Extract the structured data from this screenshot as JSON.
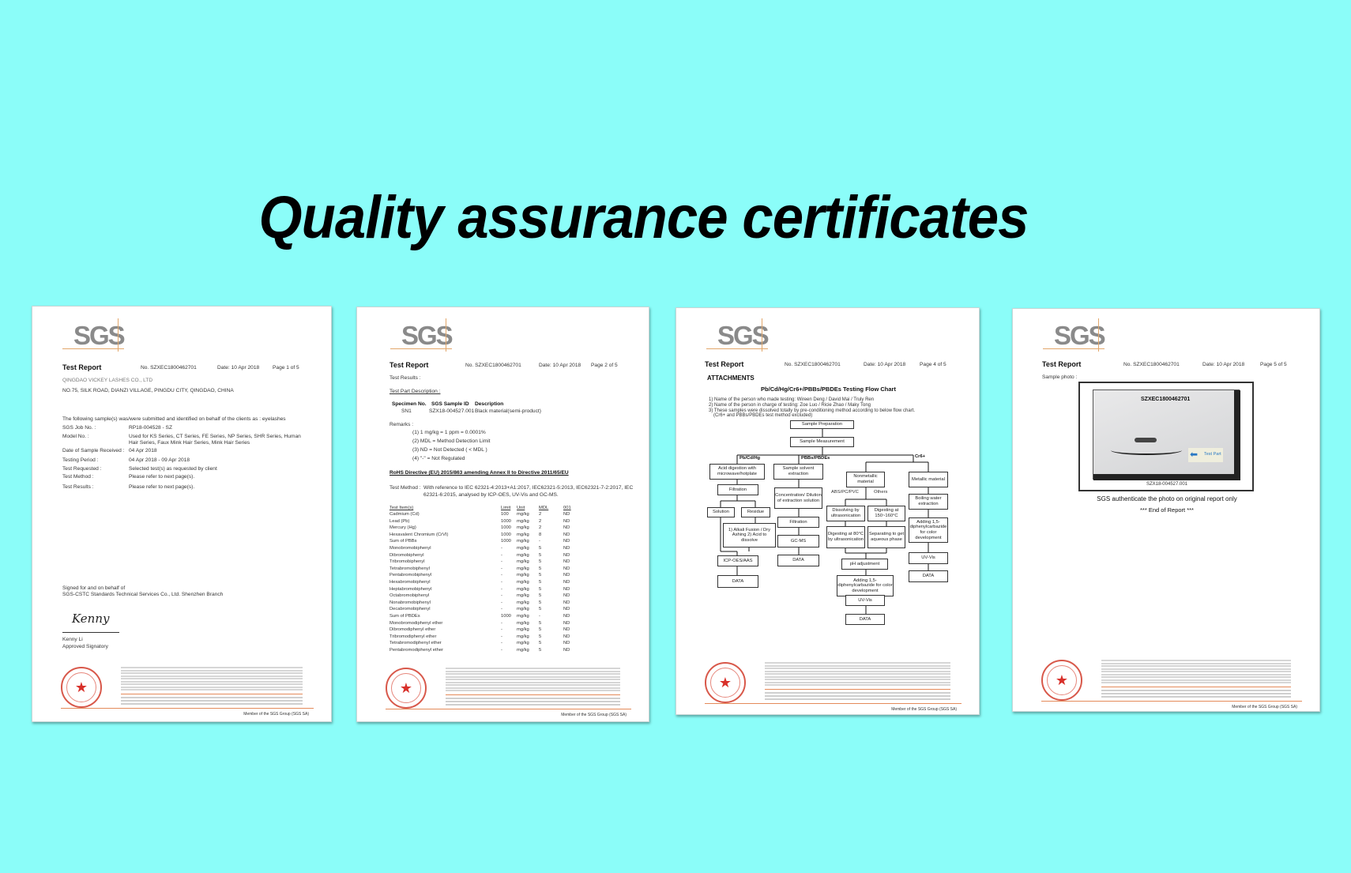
{
  "title": "Quality assurance certificates",
  "colors": {
    "background": "#8bfdf9",
    "logo_gray": "#8a8a8a",
    "seal_red": "#d8302a"
  },
  "common": {
    "logo": "SGS",
    "report_title": "Test Report",
    "report_no": "No. SZXEC1800462701",
    "date": "Date: 10 Apr 2018",
    "member": "Member of the SGS Group (SGS SA)"
  },
  "page1": {
    "page": "Page 1 of 5",
    "company": "QINGDAO VICKEY LASHES CO., LTD",
    "address": "NO.75, SILK ROAD, DIANZI VILLAGE, PINGDU CITY, QINGDAO, CHINA",
    "intro": "The following sample(s) was/were submitted and identified on behalf of the clients as : eyelashes",
    "fields": [
      {
        "label": "SGS Job No. :",
        "value": "RP18-004528 - SZ"
      },
      {
        "label": "Model No. :",
        "value": "Used for KS Series, CT Series, FE Series, NP Series, SHR Series, Human",
        "value2": "Hair Series, Faux Mink Hair Series, Mink Hair Series"
      },
      {
        "label": "Date of Sample Received :",
        "value": "04 Apr 2018"
      },
      {
        "label": "Testing Period :",
        "value": "04 Apr 2018 - 09 Apr 2018"
      },
      {
        "label": "Test Requested :",
        "value": "Selected test(s) as requested by client"
      },
      {
        "label": "Test Method :",
        "value": "Please refer to next page(s)."
      },
      {
        "label": "Test Results :",
        "value": "Please refer to next page(s)."
      }
    ],
    "signed": "Signed for and on behalf of",
    "signed_company": "SGS-CSTC Standards Technical Services Co., Ltd. Shenzhen Branch",
    "signature": "Kenny",
    "signer": "Kenny Li",
    "signer_role": "Approved Signatory"
  },
  "page2": {
    "page": "Page 2 of 5",
    "results": "Test Results :",
    "part_desc": "Test Part Description :",
    "spec_headers": [
      "Specimen No.",
      "SGS Sample ID",
      "Description"
    ],
    "spec_row": [
      "SN1",
      "SZX18-004527.001",
      "Black material(semi-product)"
    ],
    "remarks_label": "Remarks :",
    "remarks": [
      "(1) 1 mg/kg = 1 ppm = 0.0001%",
      "(2) MDL = Method Detection Limit",
      "(3) ND = Not Detected ( < MDL )",
      "(4) \"-\" = Not Regulated"
    ],
    "directive": "RoHS Directive (EU) 2015/863 amending Annex II to Directive 2011/65/EU",
    "method_label": "Test Method :",
    "method": "With reference to IEC 62321-4:2013+A1:2017, IEC62321-5:2013, IEC62321-7-2:2017, IEC",
    "method2": "62321-6:2015, analysed by ICP-OES, UV-Vis and GC-MS.",
    "table_headers": [
      "Test Item(s)",
      "Limit",
      "Unit",
      "MDL",
      "001"
    ],
    "rows": [
      [
        "Cadmium (Cd)",
        "100",
        "mg/kg",
        "2",
        "ND"
      ],
      [
        "Lead (Pb)",
        "1000",
        "mg/kg",
        "2",
        "ND"
      ],
      [
        "Mercury (Hg)",
        "1000",
        "mg/kg",
        "2",
        "ND"
      ],
      [
        "Hexavalent Chromium (CrVI)",
        "1000",
        "mg/kg",
        "8",
        "ND"
      ],
      [
        "Sum of PBBs",
        "1000",
        "mg/kg",
        "-",
        "ND"
      ],
      [
        "Monobromobiphenyl",
        "-",
        "mg/kg",
        "5",
        "ND"
      ],
      [
        "Dibromobiphenyl",
        "-",
        "mg/kg",
        "5",
        "ND"
      ],
      [
        "Tribromobiphenyl",
        "-",
        "mg/kg",
        "5",
        "ND"
      ],
      [
        "Tetrabromobiphenyl",
        "-",
        "mg/kg",
        "5",
        "ND"
      ],
      [
        "Pentabromobiphenyl",
        "-",
        "mg/kg",
        "5",
        "ND"
      ],
      [
        "Hexabromobiphenyl",
        "-",
        "mg/kg",
        "5",
        "ND"
      ],
      [
        "Heptabromobiphenyl",
        "-",
        "mg/kg",
        "5",
        "ND"
      ],
      [
        "Octabromobiphenyl",
        "-",
        "mg/kg",
        "5",
        "ND"
      ],
      [
        "Nonabromobiphenyl",
        "-",
        "mg/kg",
        "5",
        "ND"
      ],
      [
        "Decabromobiphenyl",
        "-",
        "mg/kg",
        "5",
        "ND"
      ],
      [
        "Sum of PBDEs",
        "1000",
        "mg/kg",
        "-",
        "ND"
      ],
      [
        "Monobromodiphenyl ether",
        "-",
        "mg/kg",
        "5",
        "ND"
      ],
      [
        "Dibromodiphenyl ether",
        "-",
        "mg/kg",
        "5",
        "ND"
      ],
      [
        "Tribromodiphenyl ether",
        "-",
        "mg/kg",
        "5",
        "ND"
      ],
      [
        "Tetrabromodiphenyl ether",
        "-",
        "mg/kg",
        "5",
        "ND"
      ],
      [
        "Pentabromodiphenyl ether",
        "-",
        "mg/kg",
        "5",
        "ND"
      ]
    ]
  },
  "page3": {
    "page": "Page 4 of 5",
    "attachments": "ATTACHMENTS",
    "flow_title": "Pb/Cd/Hg/Cr6+/PBBs/PBDEs Testing Flow Chart",
    "notes": [
      "1) Name of the person who made testing: Wireen Deng / David Mai / Truly Ren",
      "2) Name of the person in charge of testing: Zoe Luo / Ricie Zhao / Maky Tong",
      "3) These samples were dissolved totally by pre-conditioning method according to below flow chart.",
      "(Cr6+ and PBBs/PBDEs test method excluded)"
    ],
    "branches": [
      "Pb/Cd/Hg",
      "PBBs/PBDEs",
      "Cr6+",
      "ABS/PC/PVC",
      "Others"
    ],
    "boxes": [
      "Sample Preparation",
      "Sample Measurement",
      "Acid digestion with microwave/hotplate",
      "Sample solvent extraction",
      "Nonmetallic material",
      "Metallic material",
      "Filtration",
      "Concentration/ Dilution of extraction solution",
      "Boiling water extraction",
      "Solution",
      "Residue",
      "Filtration",
      "Dissolving by ultrasonication",
      "Digesting at 150~160°C",
      "Adding 1,5-diphenylcarbazide for color development",
      "1) Alkali Fusion / Dry Ashing 2) Acid to dissolve",
      "GC-MS",
      "Digesting at 80°C by ultrasonication",
      "Separating to get aqueous phase",
      "UV-Vis",
      "ICP-OES/AAS",
      "DATA",
      "pH adjustment",
      "DATA",
      "DATA",
      "Adding 1,5-diphenylcarbazide for color development",
      "UV-Vis",
      "DATA"
    ]
  },
  "page4": {
    "page": "Page 5 of 5",
    "sample_photo": "Sample photo :",
    "photo_label": "SZXEC1800462701",
    "photo_tag": "Test Part",
    "photo_id": "SZX18-004527.001",
    "caption": "SGS authenticate the photo on original report only",
    "end": "*** End of Report ***"
  }
}
